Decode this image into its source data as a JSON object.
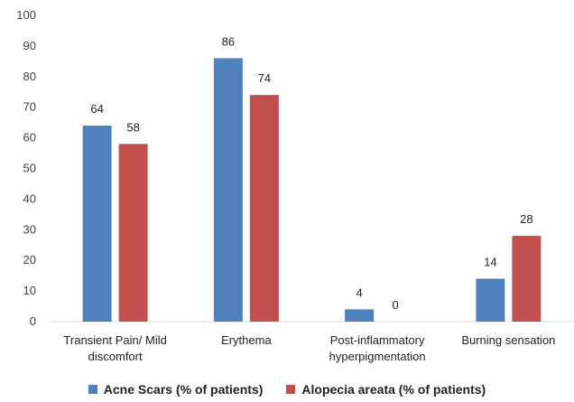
{
  "chart_data": {
    "type": "bar",
    "categories": [
      [
        "Transient Pain/ Mild",
        "discomfort"
      ],
      [
        "Erythema"
      ],
      [
        "Post-inflammatory",
        "hyperpigmentation"
      ],
      [
        "Burning sensation"
      ]
    ],
    "series": [
      {
        "name": "Acne Scars (% of patients)",
        "values": [
          64,
          86,
          4,
          14
        ],
        "color": "#4f81bd"
      },
      {
        "name": "Alopecia areata (% of patients)",
        "values": [
          58,
          74,
          0,
          28
        ],
        "color": "#c0504d"
      }
    ],
    "ylim": [
      0,
      100
    ],
    "yticks": [
      0,
      10,
      20,
      30,
      40,
      50,
      60,
      70,
      80,
      90,
      100
    ],
    "grid": false,
    "legend_position": "bottom",
    "data_labels": true
  }
}
